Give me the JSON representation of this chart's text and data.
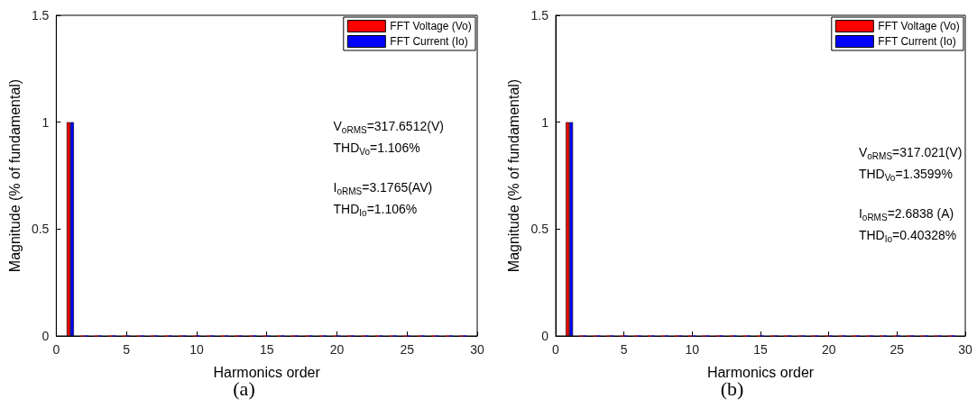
{
  "chart_data": [
    {
      "type": "bar",
      "xlabel": "Harmonics order",
      "ylabel": "Magnitude (% of fundamental)",
      "x": [
        1,
        2,
        3,
        4,
        5,
        6,
        7,
        8,
        9,
        10,
        11,
        12,
        13,
        14,
        15,
        16,
        17,
        18,
        19,
        20,
        21,
        22,
        23,
        24,
        25,
        26,
        27,
        28,
        29
      ],
      "series": [
        {
          "name": "FFT Voltage (Vo)",
          "color": "#ff0000",
          "values": [
            1,
            0,
            0,
            0,
            0,
            0,
            0,
            0,
            0,
            0,
            0,
            0,
            0,
            0,
            0,
            0,
            0,
            0,
            0,
            0,
            0,
            0,
            0,
            0,
            0,
            0,
            0,
            0,
            0
          ]
        },
        {
          "name": "FFT Current (Io)",
          "color": "#0000ff",
          "values": [
            1,
            0,
            0,
            0,
            0,
            0,
            0,
            0,
            0,
            0,
            0,
            0,
            0,
            0,
            0,
            0,
            0,
            0,
            0,
            0,
            0,
            0,
            0,
            0,
            0,
            0,
            0,
            0,
            0
          ]
        }
      ],
      "xlim": [
        0,
        30
      ],
      "xticks": [
        0,
        5,
        10,
        15,
        20,
        25,
        30
      ],
      "ylim": [
        0,
        1.5
      ],
      "yticks": [
        0,
        0.5,
        1,
        1.5
      ],
      "grid": false,
      "legend": "top right",
      "annotations": [
        "V$_{oRMS}$=317.6512(V)",
        "THD$_{Vo}$=1.106%",
        "I$_{oRMS}$=3.1765(AV)",
        "THD$_{Io}$=1.106%",
        "(a)"
      ]
    },
    {
      "type": "bar",
      "xlabel": "Harmonics order",
      "ylabel": "Magnitude (% of fundamental)",
      "x": [
        1,
        2,
        3,
        4,
        5,
        6,
        7,
        8,
        9,
        10,
        11,
        12,
        13,
        14,
        15,
        16,
        17,
        18,
        19,
        20,
        21,
        22,
        23,
        24,
        25,
        26,
        27,
        28,
        29
      ],
      "series": [
        {
          "name": "FFT Voltage (Vo)",
          "color": "#ff0000",
          "values": [
            1,
            0,
            0,
            0,
            0,
            0,
            0,
            0,
            0,
            0,
            0,
            0,
            0,
            0,
            0,
            0,
            0,
            0,
            0,
            0,
            0,
            0,
            0,
            0,
            0,
            0,
            0,
            0,
            0
          ]
        },
        {
          "name": "FFT Current (Io)",
          "color": "#0000ff",
          "values": [
            1,
            0,
            0,
            0,
            0,
            0,
            0,
            0,
            0,
            0,
            0,
            0,
            0,
            0,
            0,
            0,
            0,
            0,
            0,
            0,
            0,
            0,
            0,
            0,
            0,
            0,
            0,
            0,
            0
          ]
        }
      ],
      "xlim": [
        0,
        30
      ],
      "xticks": [
        0,
        5,
        10,
        15,
        20,
        25,
        30
      ],
      "ylim": [
        0,
        1.5
      ],
      "yticks": [
        0,
        0.5,
        1,
        1.5
      ],
      "grid": false,
      "legend": "top right",
      "annotations": [
        "V$_{oRMS}$=317.021(V)",
        "THD$_{Vo}$=1.3599%",
        "I$_{oRMS}$=2.6838 (A)",
        "THD$_{Io}$=0.40328%",
        "(b)"
      ]
    }
  ]
}
